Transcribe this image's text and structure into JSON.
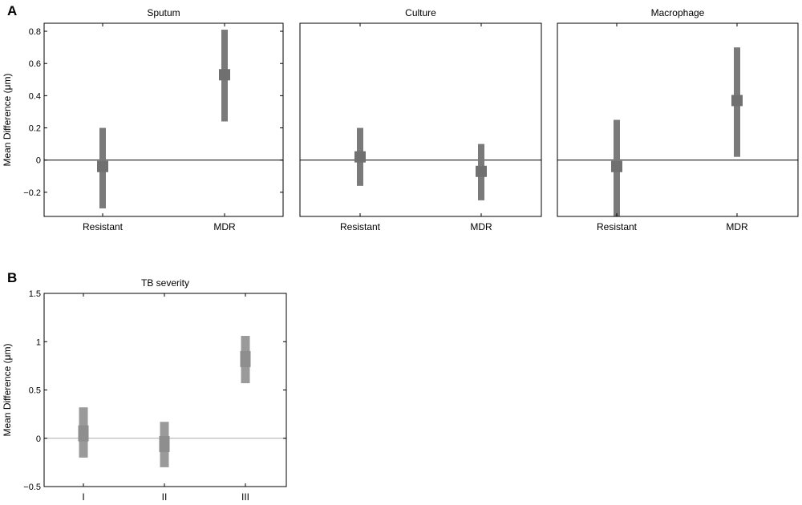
{
  "panels": [
    {
      "letter": "A"
    },
    {
      "letter": "B"
    }
  ],
  "chart_data": [
    {
      "type": "errorbar",
      "title": "Sputum",
      "ylabel": "Mean Difference (μm)",
      "categories": [
        "Resistant",
        "MDR"
      ],
      "ylim": [
        -0.35,
        0.85
      ],
      "yticks": [
        -0.2,
        0,
        0.2,
        0.4,
        0.6,
        0.8
      ],
      "ytick_labels": [
        "−0.2",
        "0",
        "0.2",
        "0.4",
        "0.6",
        "0.8"
      ],
      "mean": [
        -0.04,
        0.53
      ],
      "lower": [
        -0.3,
        0.24
      ],
      "upper": [
        0.2,
        0.81
      ],
      "color": "#7a7a7a",
      "zero_line_color": "#000000"
    },
    {
      "type": "errorbar",
      "title": "Culture",
      "ylabel": "",
      "categories": [
        "Resistant",
        "MDR"
      ],
      "ylim": [
        -0.35,
        0.85
      ],
      "mean": [
        0.02,
        -0.07
      ],
      "lower": [
        -0.16,
        -0.25
      ],
      "upper": [
        0.2,
        0.1
      ],
      "color": "#7a7a7a",
      "zero_line_color": "#000000"
    },
    {
      "type": "errorbar",
      "title": "Macrophage",
      "ylabel": "",
      "categories": [
        "Resistant",
        "MDR"
      ],
      "ylim": [
        -0.35,
        0.85
      ],
      "mean": [
        -0.04,
        0.37
      ],
      "lower": [
        -0.35,
        0.02
      ],
      "upper": [
        0.25,
        0.7
      ],
      "color": "#7a7a7a",
      "zero_line_color": "#000000"
    },
    {
      "type": "errorbar",
      "title": "TB severity",
      "ylabel": "Mean Difference (μm)",
      "categories": [
        "I",
        "II",
        "III"
      ],
      "ylim": [
        -0.5,
        1.5
      ],
      "yticks": [
        -0.5,
        0,
        0.5,
        1,
        1.5
      ],
      "ytick_labels": [
        "−0.5",
        "0",
        "0.5",
        "1",
        "1.5"
      ],
      "mean": [
        0.05,
        -0.06,
        0.82
      ],
      "lower": [
        -0.2,
        -0.3,
        0.57
      ],
      "upper": [
        0.32,
        0.17,
        1.06
      ],
      "color": "#9a9a9a",
      "zero_line_color": "#aaaaaa"
    }
  ]
}
